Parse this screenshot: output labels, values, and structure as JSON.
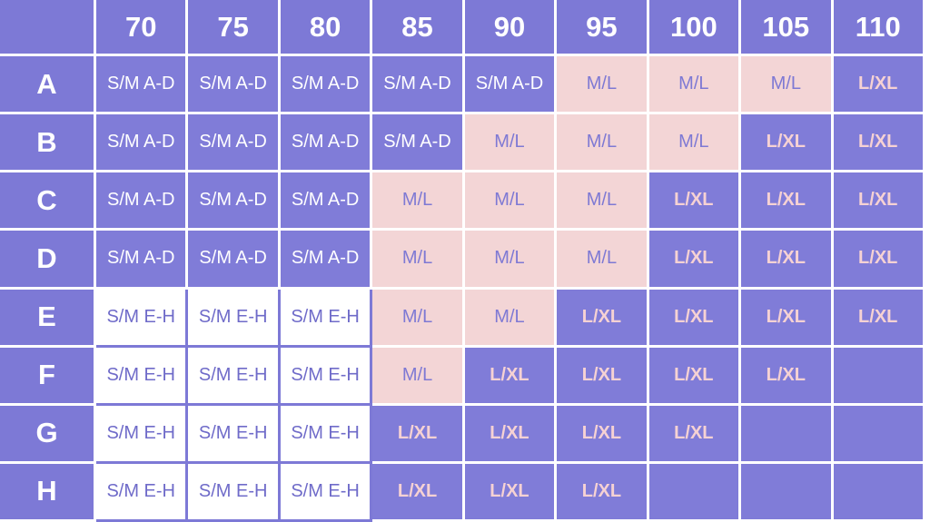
{
  "table": {
    "columns": [
      "70",
      "75",
      "80",
      "85",
      "90",
      "95",
      "100",
      "105",
      "110"
    ],
    "rows": [
      {
        "label": "A",
        "cells": [
          "S/M A-D",
          "S/M A-D",
          "S/M A-D",
          "S/M A-D",
          "S/M A-D",
          "M/L",
          "M/L",
          "M/L",
          "L/XL"
        ]
      },
      {
        "label": "B",
        "cells": [
          "S/M A-D",
          "S/M A-D",
          "S/M A-D",
          "S/M A-D",
          "M/L",
          "M/L",
          "M/L",
          "L/XL",
          "L/XL"
        ]
      },
      {
        "label": "C",
        "cells": [
          "S/M A-D",
          "S/M A-D",
          "S/M A-D",
          "M/L",
          "M/L",
          "M/L",
          "L/XL",
          "L/XL",
          "L/XL"
        ]
      },
      {
        "label": "D",
        "cells": [
          "S/M A-D",
          "S/M A-D",
          "S/M A-D",
          "M/L",
          "M/L",
          "M/L",
          "L/XL",
          "L/XL",
          "L/XL"
        ]
      },
      {
        "label": "E",
        "cells": [
          "S/M E-H",
          "S/M E-H",
          "S/M E-H",
          "M/L",
          "M/L",
          "L/XL",
          "L/XL",
          "L/XL",
          "L/XL"
        ]
      },
      {
        "label": "F",
        "cells": [
          "S/M E-H",
          "S/M E-H",
          "S/M E-H",
          "M/L",
          "L/XL",
          "L/XL",
          "L/XL",
          "L/XL",
          ""
        ]
      },
      {
        "label": "G",
        "cells": [
          "S/M E-H",
          "S/M E-H",
          "S/M E-H",
          "L/XL",
          "L/XL",
          "L/XL",
          "L/XL",
          "",
          ""
        ]
      },
      {
        "label": "H",
        "cells": [
          "S/M E-H",
          "S/M E-H",
          "S/M E-H",
          "L/XL",
          "L/XL",
          "L/XL",
          "",
          "",
          ""
        ]
      }
    ]
  },
  "colors": {
    "purple": "#807cd8",
    "pink": "#f3d5d6",
    "white": "#ffffff",
    "label_pink": "#f6d2d3",
    "label_purple": "#7e79d4"
  }
}
